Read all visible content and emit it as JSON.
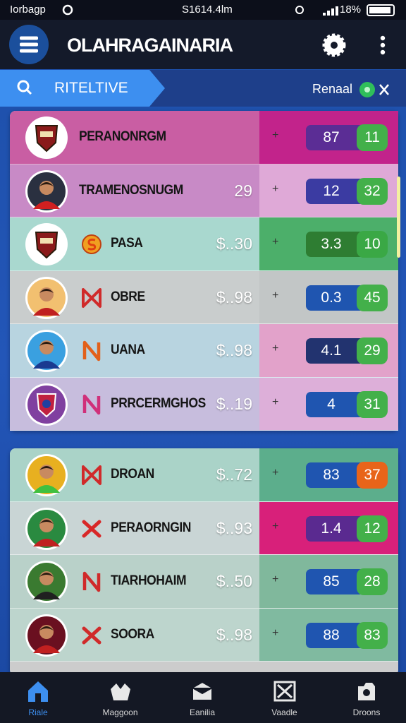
{
  "status_bar": {
    "left": "Iorbagp",
    "time": "S1614.4lm",
    "battery": "18%"
  },
  "header": {
    "title": "OLAHRAGAINARIA"
  },
  "tab_bar": {
    "tab": "RITELTIVE",
    "action": "Renaal"
  },
  "lists": [
    {
      "rows": [
        {
          "name": "PERANONRGM",
          "left": "87",
          "right": "11"
        },
        {
          "name": "TRAMENOSNUGM",
          "price": "29",
          "left": "12",
          "right": "32"
        },
        {
          "name": "PASA",
          "icon": "S",
          "price": "$..30",
          "left": "3.3",
          "right": "10"
        },
        {
          "name": "OBRE",
          "price": "$..98",
          "left": "0.3",
          "right": "45"
        },
        {
          "name": "UANA",
          "price": "$..98",
          "left": "4.1",
          "right": "29"
        },
        {
          "name": "PRRCERMGHOS",
          "price": "$..19",
          "left": "4",
          "right": "31"
        }
      ]
    },
    {
      "rows": [
        {
          "name": "DROAN",
          "price": "$..72",
          "left": "83",
          "right": "37"
        },
        {
          "name": "PERAORNGIN",
          "price": "$..93",
          "left": "1.4",
          "right": "12"
        },
        {
          "name": "TIARHOHAIM",
          "price": "$..50",
          "left": "85",
          "right": "28"
        },
        {
          "name": "SOORA",
          "price": "$..98",
          "left": "88",
          "right": "83"
        }
      ]
    }
  ],
  "bottom_nav": [
    "Riale",
    "Maggoon",
    "Eanilia",
    "Vaadle",
    "Droons"
  ]
}
